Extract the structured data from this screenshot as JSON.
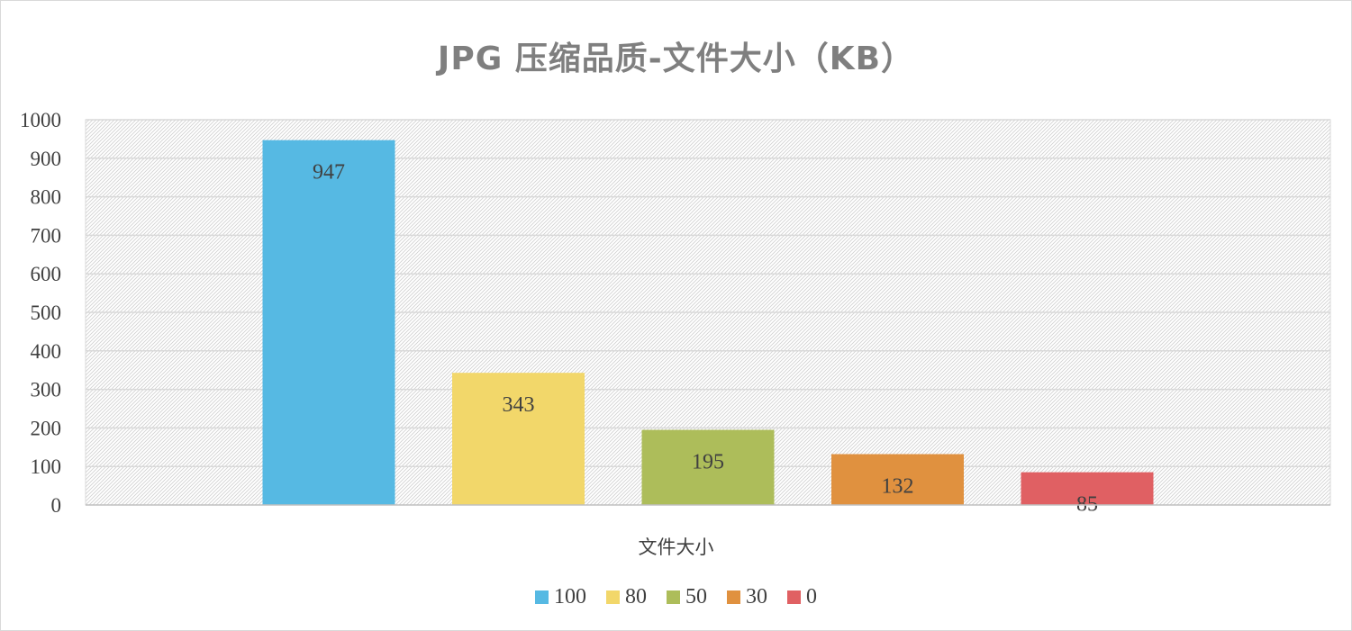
{
  "chart_data": {
    "type": "bar",
    "title": "JPG 压缩品质-文件大小（KB）",
    "xlabel": "文件大小",
    "ylabel": "",
    "categories": [
      "文件大小"
    ],
    "series": [
      {
        "name": "100",
        "values": [
          947
        ],
        "color": "#56b9e3"
      },
      {
        "name": "80",
        "values": [
          343
        ],
        "color": "#f2d76a"
      },
      {
        "name": "50",
        "values": [
          195
        ],
        "color": "#adbd5a"
      },
      {
        "name": "30",
        "values": [
          132
        ],
        "color": "#e0913f"
      },
      {
        "name": "0",
        "values": [
          85
        ],
        "color": "#e06063"
      }
    ],
    "ylim": [
      0,
      1000
    ],
    "yticks": [
      0,
      100,
      200,
      300,
      400,
      500,
      600,
      700,
      800,
      900,
      1000
    ],
    "grid": true,
    "legend_position": "bottom",
    "data_labels": true
  }
}
